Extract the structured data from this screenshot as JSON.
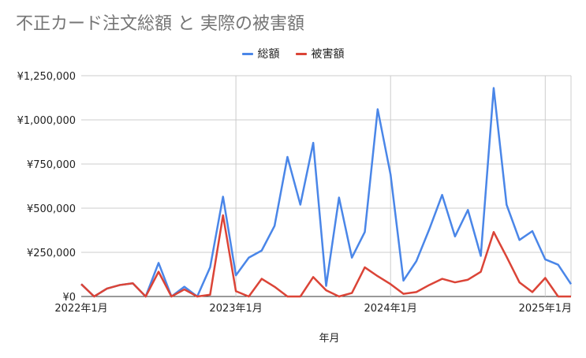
{
  "chart_data": {
    "type": "line",
    "title": "不正カード注文総額 と 実際の被害額",
    "xlabel": "年月",
    "ylabel": "",
    "ylim": [
      0,
      1250000
    ],
    "yticks": [
      0,
      250000,
      500000,
      750000,
      1000000,
      1250000
    ],
    "ytick_labels": [
      "¥0",
      "¥250,000",
      "¥500,000",
      "¥750,000",
      "¥1,000,000",
      "¥1,250,000"
    ],
    "xtick_labels": [
      {
        "index": 0,
        "label": "2022年1月"
      },
      {
        "index": 12,
        "label": "2023年1月"
      },
      {
        "index": 24,
        "label": "2024年1月"
      },
      {
        "index": 36,
        "label": "2025年1月"
      }
    ],
    "grid": true,
    "legend_position": "top",
    "x": [
      "2022-01",
      "2022-02",
      "2022-03",
      "2022-04",
      "2022-05",
      "2022-06",
      "2022-07",
      "2022-08",
      "2022-09",
      "2022-10",
      "2022-11",
      "2022-12",
      "2023-01",
      "2023-02",
      "2023-03",
      "2023-04",
      "2023-05",
      "2023-06",
      "2023-07",
      "2023-08",
      "2023-09",
      "2023-10",
      "2023-11",
      "2023-12",
      "2024-01",
      "2024-02",
      "2024-03",
      "2024-04",
      "2024-05",
      "2024-06",
      "2024-07",
      "2024-08",
      "2024-09",
      "2024-10",
      "2024-11",
      "2024-12",
      "2025-01",
      "2025-02",
      "2025-03"
    ],
    "series": [
      {
        "name": "総額",
        "color": "#4a86e8",
        "values": [
          70000,
          0,
          45000,
          65000,
          75000,
          0,
          190000,
          0,
          55000,
          0,
          165000,
          565000,
          120000,
          220000,
          260000,
          400000,
          790000,
          520000,
          870000,
          60000,
          560000,
          220000,
          365000,
          1060000,
          690000,
          90000,
          200000,
          380000,
          575000,
          340000,
          490000,
          230000,
          1180000,
          520000,
          320000,
          370000,
          210000,
          180000,
          70000
        ]
      },
      {
        "name": "被害額",
        "color": "#db4437",
        "values": [
          70000,
          0,
          45000,
          65000,
          75000,
          0,
          140000,
          0,
          40000,
          0,
          10000,
          460000,
          30000,
          0,
          100000,
          55000,
          0,
          0,
          110000,
          35000,
          0,
          20000,
          165000,
          115000,
          70000,
          15000,
          25000,
          65000,
          100000,
          80000,
          95000,
          140000,
          365000,
          225000,
          80000,
          25000,
          105000,
          0,
          0
        ]
      }
    ]
  }
}
